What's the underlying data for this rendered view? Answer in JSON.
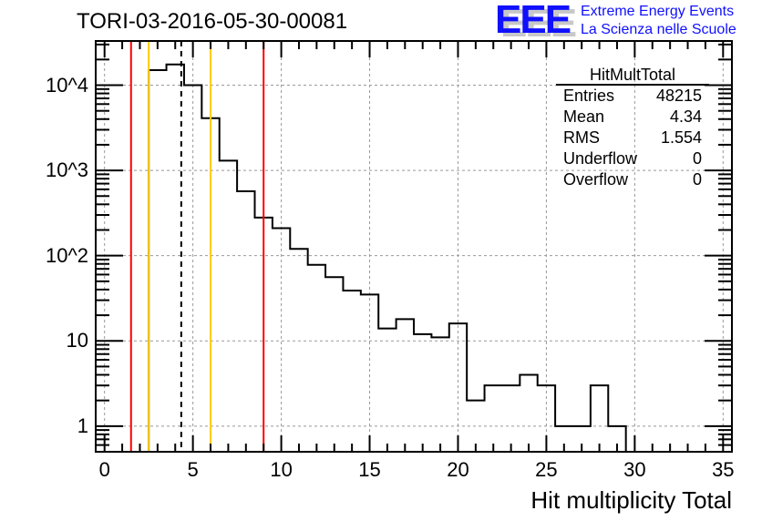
{
  "header": {
    "title": "TORI-03-2016-05-30-00081",
    "logo_text": "EEE",
    "tagline_1": "Extreme Energy Events",
    "tagline_2": "La Scienza nelle Scuole"
  },
  "stats": {
    "name": "HitMultTotal",
    "rows": [
      {
        "label": "Entries",
        "value": "48215"
      },
      {
        "label": "Mean",
        "value": "4.34"
      },
      {
        "label": "RMS",
        "value": "1.554"
      },
      {
        "label": "Underflow",
        "value": "0"
      },
      {
        "label": "Overflow",
        "value": "0"
      }
    ]
  },
  "colors": {
    "hist": "#000000",
    "red_line": "#ff0000",
    "orange_line": "#ffcc00",
    "grid": "#999999"
  },
  "chart_data": {
    "type": "bar",
    "style": "step histogram",
    "title": "TORI-03-2016-05-30-00081",
    "xlabel": "Hit multiplicity Total",
    "ylabel": "",
    "xlim": [
      -0.5,
      35.5
    ],
    "ylim": [
      0.5,
      33000
    ],
    "yscale": "log",
    "grid": true,
    "bin_width": 1,
    "bin_centers": [
      3,
      4,
      5,
      6,
      7,
      8,
      9,
      10,
      11,
      12,
      13,
      14,
      15,
      16,
      17,
      18,
      19,
      20,
      21,
      22,
      23,
      24,
      25,
      26,
      27,
      28,
      29
    ],
    "values": [
      15000,
      17500,
      10000,
      4100,
      1300,
      570,
      280,
      210,
      120,
      78,
      56,
      39,
      35,
      14,
      18,
      12,
      11,
      16,
      2,
      3,
      3,
      4,
      3,
      1,
      1,
      3,
      1
    ],
    "xticks": [
      0,
      5,
      10,
      15,
      20,
      25,
      30,
      35
    ],
    "xtick_labels": [
      "0",
      "5",
      "10",
      "15",
      "20",
      "25",
      "30",
      "35"
    ],
    "yticks": [
      1,
      10,
      100,
      1000,
      10000
    ],
    "ytick_labels": [
      "1",
      "10",
      "10^2",
      "10^3",
      "10^4"
    ],
    "vertical_lines": [
      {
        "x": 1.5,
        "color": "red",
        "style": "solid"
      },
      {
        "x": 2.5,
        "color": "orange",
        "style": "solid"
      },
      {
        "x": 4.34,
        "color": "black",
        "style": "dashed",
        "label": "mean"
      },
      {
        "x": 6.0,
        "color": "orange",
        "style": "solid"
      },
      {
        "x": 9.0,
        "color": "red",
        "style": "solid"
      }
    ]
  }
}
